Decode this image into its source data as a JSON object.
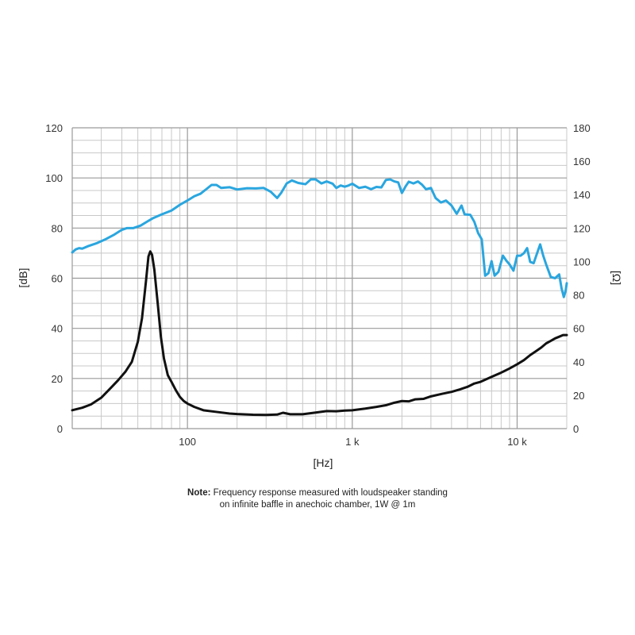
{
  "chart_data": {
    "type": "line",
    "xscale": "log",
    "xlim": [
      20,
      20000
    ],
    "ylim_left": [
      0,
      120
    ],
    "ylim_right": [
      0,
      180
    ],
    "xlabel": "[Hz]",
    "ylabel_left": "[dB]",
    "ylabel_right": "[Ω]",
    "grid": true,
    "x_tick_labels": [
      {
        "value": 100,
        "label": "100"
      },
      {
        "value": 1000,
        "label": "1 k"
      },
      {
        "value": 10000,
        "label": "10 k"
      }
    ],
    "y_left_ticks": [
      0,
      20,
      40,
      60,
      80,
      100,
      120
    ],
    "y_right_ticks": [
      0,
      20,
      40,
      60,
      80,
      100,
      120,
      140,
      160,
      180
    ],
    "series": [
      {
        "axis": "left",
        "color": "#2aa6df",
        "points": [
          [
            20,
            70.3
          ],
          [
            21,
            71.5
          ],
          [
            22,
            72
          ],
          [
            23,
            71.8
          ],
          [
            25,
            72.8
          ],
          [
            28,
            73.9
          ],
          [
            32,
            75.6
          ],
          [
            36,
            77.4
          ],
          [
            40,
            79.3
          ],
          [
            43,
            80
          ],
          [
            47,
            80
          ],
          [
            52,
            81
          ],
          [
            57,
            82.6
          ],
          [
            62,
            84
          ],
          [
            70,
            85.5
          ],
          [
            80,
            87
          ],
          [
            90,
            89.3
          ],
          [
            100,
            91
          ],
          [
            110,
            92.7
          ],
          [
            120,
            93.7
          ],
          [
            130,
            95.5
          ],
          [
            140,
            97.2
          ],
          [
            150,
            97.2
          ],
          [
            160,
            96
          ],
          [
            180,
            96.3
          ],
          [
            200,
            95.4
          ],
          [
            230,
            95.9
          ],
          [
            260,
            95.8
          ],
          [
            290,
            96
          ],
          [
            320,
            94.5
          ],
          [
            350,
            92
          ],
          [
            370,
            94
          ],
          [
            400,
            97.8
          ],
          [
            430,
            99
          ],
          [
            470,
            98
          ],
          [
            520,
            97.5
          ],
          [
            560,
            99.4
          ],
          [
            600,
            99.4
          ],
          [
            650,
            97.8
          ],
          [
            700,
            98.6
          ],
          [
            760,
            97.7
          ],
          [
            800,
            96
          ],
          [
            850,
            97
          ],
          [
            900,
            96.5
          ],
          [
            950,
            97
          ],
          [
            1000,
            97.7
          ],
          [
            1100,
            96
          ],
          [
            1200,
            96.5
          ],
          [
            1300,
            95.5
          ],
          [
            1400,
            96.4
          ],
          [
            1500,
            96.2
          ],
          [
            1600,
            99.2
          ],
          [
            1700,
            99.4
          ],
          [
            1800,
            98.6
          ],
          [
            1900,
            98.2
          ],
          [
            2000,
            94
          ],
          [
            2100,
            96.5
          ],
          [
            2200,
            98.5
          ],
          [
            2350,
            97.8
          ],
          [
            2500,
            98.6
          ],
          [
            2650,
            97.3
          ],
          [
            2800,
            95.5
          ],
          [
            3000,
            96
          ],
          [
            3200,
            92
          ],
          [
            3450,
            90.2
          ],
          [
            3700,
            91
          ],
          [
            4000,
            89
          ],
          [
            4300,
            85.7
          ],
          [
            4600,
            89
          ],
          [
            4800,
            85.5
          ],
          [
            5200,
            85.3
          ],
          [
            5500,
            82.5
          ],
          [
            5800,
            78
          ],
          [
            6100,
            75.5
          ],
          [
            6400,
            61
          ],
          [
            6700,
            62
          ],
          [
            7000,
            66.8
          ],
          [
            7300,
            61
          ],
          [
            7700,
            62.5
          ],
          [
            8200,
            69
          ],
          [
            8600,
            67
          ],
          [
            9000,
            65.5
          ],
          [
            9500,
            63
          ],
          [
            10000,
            69
          ],
          [
            10500,
            69
          ],
          [
            11000,
            70
          ],
          [
            11500,
            72
          ],
          [
            12000,
            66.5
          ],
          [
            12600,
            66
          ],
          [
            13300,
            70.5
          ],
          [
            13800,
            73.5
          ],
          [
            14400,
            69
          ],
          [
            15000,
            65.5
          ],
          [
            16000,
            60.5
          ],
          [
            17000,
            60
          ],
          [
            18000,
            61.5
          ],
          [
            18600,
            56
          ],
          [
            19200,
            52.5
          ],
          [
            19700,
            55
          ],
          [
            20000,
            58
          ]
        ]
      },
      {
        "axis": "right",
        "color": "#111111",
        "points": [
          [
            20,
            11
          ],
          [
            23,
            12.5
          ],
          [
            26,
            14.5
          ],
          [
            30,
            18.5
          ],
          [
            34,
            24
          ],
          [
            38,
            29
          ],
          [
            42,
            34
          ],
          [
            46,
            40
          ],
          [
            50,
            52
          ],
          [
            53,
            66
          ],
          [
            56,
            88
          ],
          [
            58,
            103
          ],
          [
            59.5,
            106
          ],
          [
            61,
            104
          ],
          [
            63,
            95
          ],
          [
            66,
            75
          ],
          [
            69,
            55
          ],
          [
            72,
            42
          ],
          [
            76,
            32
          ],
          [
            80,
            28
          ],
          [
            85,
            23
          ],
          [
            90,
            19
          ],
          [
            95,
            16.5
          ],
          [
            100,
            15
          ],
          [
            110,
            13
          ],
          [
            125,
            11
          ],
          [
            150,
            10
          ],
          [
            180,
            9
          ],
          [
            200,
            8.7
          ],
          [
            250,
            8.3
          ],
          [
            300,
            8.2
          ],
          [
            350,
            8.4
          ],
          [
            380,
            9.5
          ],
          [
            420,
            8.6
          ],
          [
            500,
            8.6
          ],
          [
            600,
            9.6
          ],
          [
            700,
            10.5
          ],
          [
            800,
            10.4
          ],
          [
            900,
            10.8
          ],
          [
            1000,
            11
          ],
          [
            1200,
            12
          ],
          [
            1400,
            13
          ],
          [
            1600,
            14
          ],
          [
            1800,
            15.5
          ],
          [
            2000,
            16.5
          ],
          [
            2200,
            16.3
          ],
          [
            2400,
            17.5
          ],
          [
            2700,
            17.8
          ],
          [
            3000,
            19.3
          ],
          [
            3500,
            20.8
          ],
          [
            4000,
            22
          ],
          [
            4500,
            23.5
          ],
          [
            5000,
            25
          ],
          [
            5500,
            27
          ],
          [
            6000,
            28
          ],
          [
            7000,
            31
          ],
          [
            8000,
            33.5
          ],
          [
            9000,
            36
          ],
          [
            10000,
            38.5
          ],
          [
            11000,
            41
          ],
          [
            12000,
            44
          ],
          [
            13000,
            46.3
          ],
          [
            14000,
            48.5
          ],
          [
            15000,
            51
          ],
          [
            16000,
            52.5
          ],
          [
            17000,
            54
          ],
          [
            18000,
            55
          ],
          [
            19000,
            56
          ],
          [
            20000,
            56
          ]
        ]
      }
    ]
  },
  "note": {
    "label": "Note:",
    "line1": " Frequency response measured with loudspeaker standing",
    "line2": "on infinite baffle in anechoic chamber, 1W @ 1m"
  }
}
